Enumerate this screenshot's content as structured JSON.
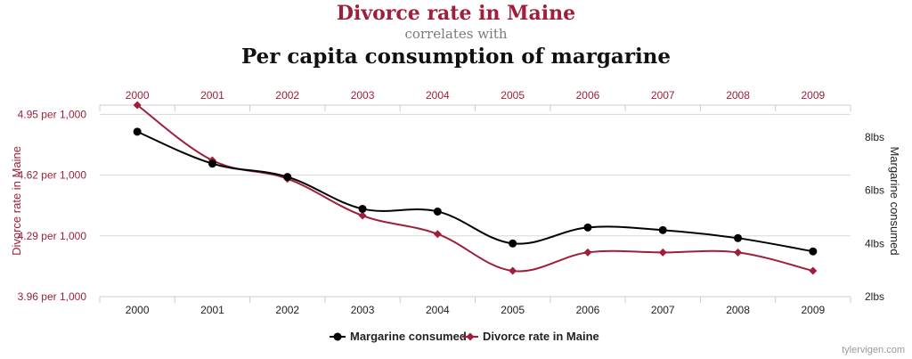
{
  "header": {
    "title": "Divorce rate in Maine",
    "connector": "correlates with",
    "subtitle": "Per capita consumption of margarine"
  },
  "watermark": "tylervigen.com",
  "colors": {
    "divorce": "#9f1f3a",
    "margarine": "#000000",
    "grid": "#d9d9d9",
    "axis_text": "#333333"
  },
  "chart_data": {
    "type": "line",
    "x": [
      2000,
      2001,
      2002,
      2003,
      2004,
      2005,
      2006,
      2007,
      2008,
      2009
    ],
    "x_tick_labels": [
      "2000",
      "2001",
      "2002",
      "2003",
      "2004",
      "2005",
      "2006",
      "2007",
      "2008",
      "2009"
    ],
    "left_axis": {
      "label": "Divorce rate in Maine",
      "range": [
        3.96,
        5.0
      ],
      "ticks": [
        3.96,
        4.29,
        4.62,
        4.95
      ],
      "tick_labels": [
        "3.96 per 1,000",
        "4.29 per 1,000",
        "4.62 per 1,000",
        "4.95 per 1,000"
      ]
    },
    "right_axis": {
      "label": "Margarine consumed",
      "range": [
        2,
        9.2
      ],
      "ticks": [
        2,
        4,
        6,
        8
      ],
      "tick_labels": [
        "2lbs",
        "4lbs",
        "6lbs",
        "8lbs"
      ]
    },
    "series": [
      {
        "name": "Margarine consumed",
        "axis": "right",
        "color": "#000000",
        "marker": "circle",
        "values": [
          8.2,
          7.0,
          6.5,
          5.3,
          5.2,
          4.0,
          4.6,
          4.5,
          4.2,
          3.7
        ]
      },
      {
        "name": "Divorce rate in Maine",
        "axis": "left",
        "color": "#9f1f3a",
        "marker": "diamond",
        "values": [
          5.0,
          4.7,
          4.6,
          4.4,
          4.3,
          4.1,
          4.2,
          4.2,
          4.2,
          4.1
        ]
      }
    ],
    "grid": true,
    "legend_position": "bottom-center"
  }
}
